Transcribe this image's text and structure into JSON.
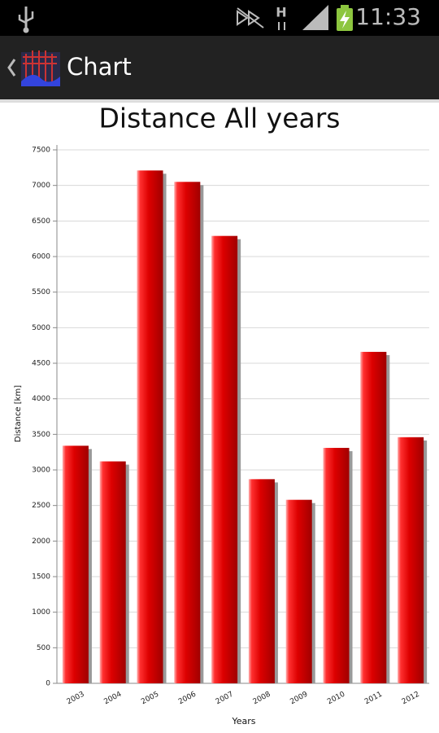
{
  "status_bar": {
    "network": "H",
    "time": "11:33"
  },
  "app_bar": {
    "title": "Chart"
  },
  "chart_data": {
    "type": "bar",
    "title": "Distance All years",
    "x_label": "Years",
    "y_label": "Distance [km]",
    "categories": [
      "2003",
      "2004",
      "2005",
      "2006",
      "2007",
      "2008",
      "2009",
      "2010",
      "2011",
      "2012"
    ],
    "values": [
      3340,
      3120,
      7210,
      7050,
      6290,
      2870,
      2580,
      3310,
      4660,
      3460
    ],
    "color": "#dd0000",
    "ylim": [
      0,
      7500
    ],
    "yticks": [
      0,
      500,
      1000,
      1500,
      2000,
      2500,
      3000,
      3500,
      4000,
      4500,
      5000,
      5500,
      6000,
      6500,
      7000,
      7500
    ],
    "grid": true
  }
}
